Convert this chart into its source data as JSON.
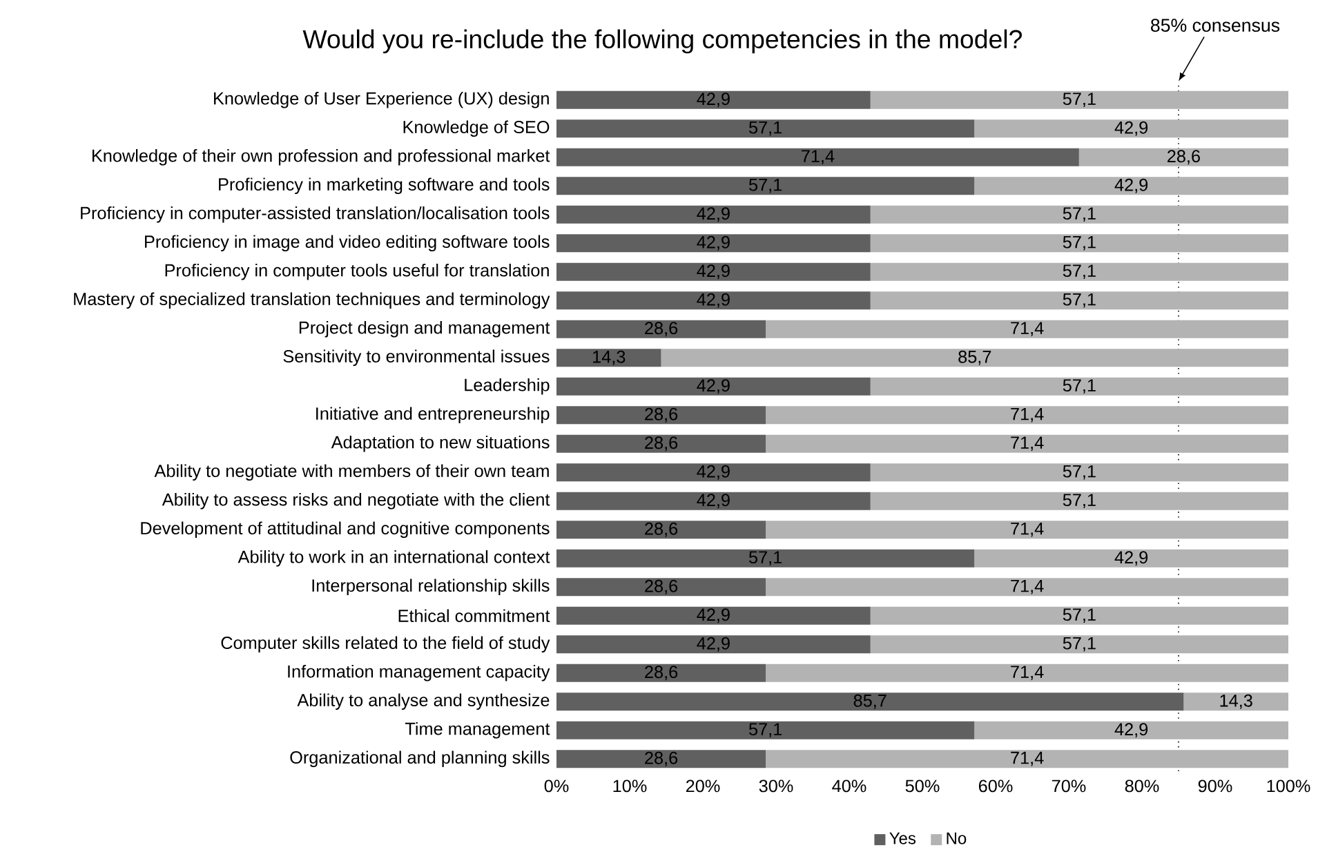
{
  "chart_data": {
    "type": "bar",
    "orientation": "horizontal",
    "stacked": true,
    "title": "Would you re-include the following competencies in the model?",
    "categories": [
      "Knowledge of User Experience (UX) design",
      "Knowledge of SEO",
      "Knowledge of their own profession and professional market",
      "Proficiency in marketing software and tools",
      "Proficiency in computer-assisted translation/localisation tools",
      "Proficiency in image and video editing software tools",
      "Proficiency in computer tools useful for translation",
      "Mastery of specialized translation techniques and terminology",
      "Project design and management",
      "Sensitivity to environmental issues",
      "Leadership",
      "Initiative and entrepreneurship",
      "Adaptation to new situations",
      "Ability to negotiate with members of their own team",
      "Ability to assess risks and negotiate with the client",
      "Development of attitudinal and cognitive components",
      "Ability to work in an international context",
      "Interpersonal relationship skills",
      "Ethical commitment",
      "Computer skills related to the field of study",
      "Information management capacity",
      "Ability to analyse and synthesize",
      "Time management",
      "Organizational and planning skills"
    ],
    "series": [
      {
        "name": "Yes",
        "color": "#606060",
        "values": [
          42.9,
          57.1,
          71.4,
          57.1,
          42.9,
          42.9,
          42.9,
          42.9,
          28.6,
          14.3,
          42.9,
          28.6,
          28.6,
          42.9,
          42.9,
          28.6,
          57.1,
          28.6,
          42.9,
          42.9,
          28.6,
          85.7,
          57.1,
          28.6
        ],
        "value_labels": [
          "42,9",
          "57,1",
          "71,4",
          "57,1",
          "42,9",
          "42,9",
          "42,9",
          "42,9",
          "28,6",
          "14,3",
          "42,9",
          "28,6",
          "28,6",
          "42,9",
          "42,9",
          "28,6",
          "57,1",
          "28,6",
          "42,9",
          "42,9",
          "28,6",
          "85,7",
          "57,1",
          "28,6"
        ]
      },
      {
        "name": "No",
        "color": "#b3b3b3",
        "values": [
          57.1,
          42.9,
          28.6,
          42.9,
          57.1,
          57.1,
          57.1,
          57.1,
          71.4,
          85.7,
          57.1,
          71.4,
          71.4,
          57.1,
          57.1,
          71.4,
          42.9,
          71.4,
          57.1,
          57.1,
          71.4,
          14.3,
          42.9,
          71.4
        ],
        "value_labels": [
          "57,1",
          "42,9",
          "28,6",
          "42,9",
          "57,1",
          "57,1",
          "57,1",
          "57,1",
          "71,4",
          "85,7",
          "57,1",
          "71,4",
          "71,4",
          "57,1",
          "57,1",
          "71,4",
          "42,9",
          "71,4",
          "57,1",
          "57,1",
          "71,4",
          "14,3",
          "42,9",
          "71,4"
        ]
      }
    ],
    "xlim": [
      0,
      100
    ],
    "xticks": [
      {
        "value": 0,
        "label": "0%"
      },
      {
        "value": 10,
        "label": "10%"
      },
      {
        "value": 20,
        "label": "20%"
      },
      {
        "value": 30,
        "label": "30%"
      },
      {
        "value": 40,
        "label": "40%"
      },
      {
        "value": 50,
        "label": "50%"
      },
      {
        "value": 60,
        "label": "60%"
      },
      {
        "value": 70,
        "label": "70%"
      },
      {
        "value": 80,
        "label": "80%"
      },
      {
        "value": 90,
        "label": "90%"
      },
      {
        "value": 100,
        "label": "100%"
      }
    ],
    "ref_lines": [
      {
        "axis": "x",
        "value": 85,
        "label": "85% consensus",
        "line_style": "dotted",
        "color": "#000000"
      }
    ],
    "legend": "bottom"
  }
}
